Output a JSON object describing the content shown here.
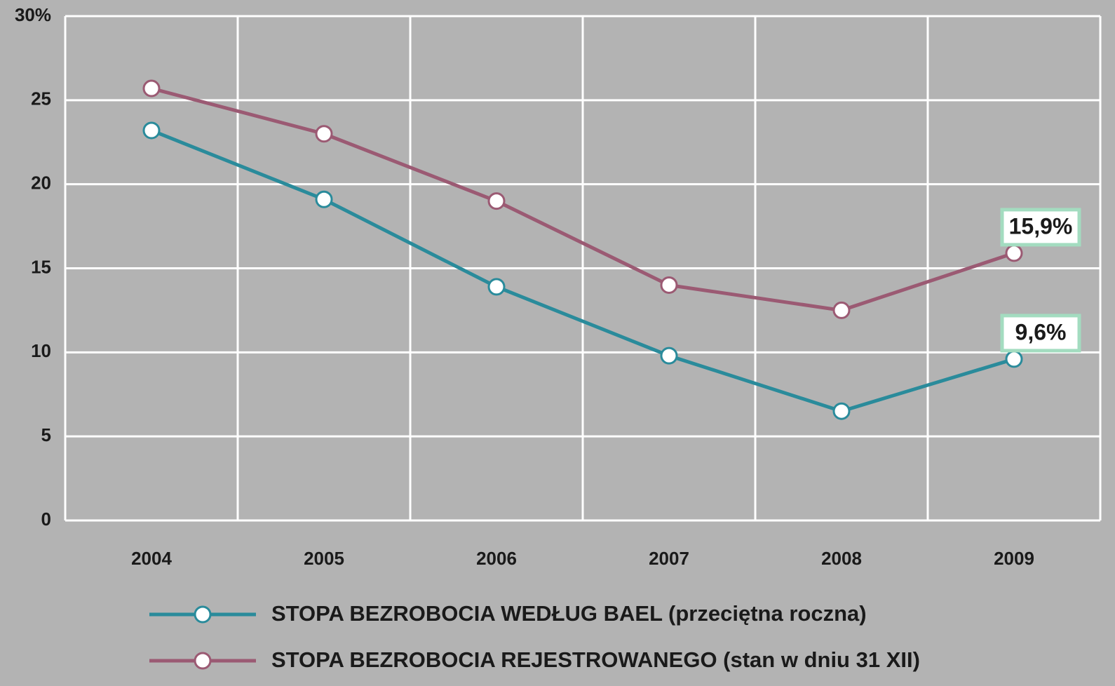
{
  "chart_data": {
    "type": "line",
    "categories": [
      "2004",
      "2005",
      "2006",
      "2007",
      "2008",
      "2009"
    ],
    "series": [
      {
        "name": "STOPA BEZROBOCIA WEDŁUG BAEL (przeciętna roczna)",
        "color": "#2a8b9b",
        "values": [
          23.2,
          19.1,
          13.9,
          9.8,
          6.5,
          9.6
        ],
        "value_labels": [
          null,
          null,
          null,
          null,
          null,
          "9,6%"
        ]
      },
      {
        "name": "STOPA BEZROBOCIA REJESTROWANEGO (stan w dniu 31 XII)",
        "color": "#9b5a73",
        "values": [
          25.7,
          23.0,
          19.0,
          14.0,
          12.5,
          15.9
        ],
        "value_labels": [
          null,
          null,
          null,
          null,
          null,
          "15,9%"
        ]
      }
    ],
    "ylim": [
      0,
      30
    ],
    "yticks": [
      0,
      5,
      10,
      15,
      20,
      25,
      {
        "value": 30,
        "label": "30%"
      }
    ],
    "grid": true,
    "legend": "bottom"
  }
}
